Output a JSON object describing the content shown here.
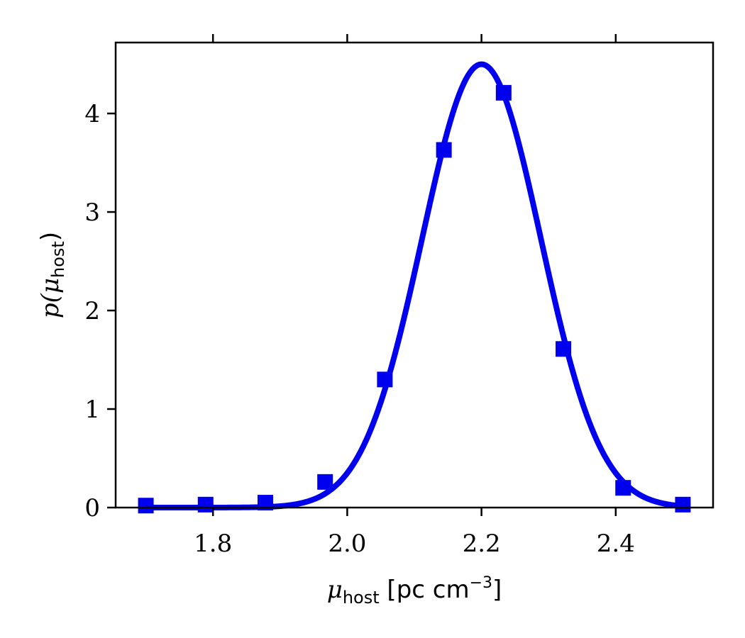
{
  "chart_data": {
    "type": "line",
    "title": "",
    "xlabel": {
      "symbol": "μ",
      "subscript": "host",
      "unit_open": " [pc cm",
      "unit_exponent": "−3",
      "unit_close": "]"
    },
    "ylabel": {
      "prefix": "p(",
      "symbol": "μ",
      "subscript": "host",
      "suffix": ")"
    },
    "xlim": [
      1.655,
      2.545
    ],
    "ylim": [
      0,
      4.72
    ],
    "xticks": [
      1.8,
      2.0,
      2.2,
      2.4
    ],
    "xtick_labels": [
      "1.8",
      "2.0",
      "2.2",
      "2.4"
    ],
    "yticks": [
      0,
      1,
      2,
      3,
      4
    ],
    "ytick_labels": [
      "0",
      "1",
      "2",
      "3",
      "4"
    ],
    "top_ticks": true,
    "grid": false,
    "legend": "none",
    "color": "#0000ee",
    "curve": {
      "type": "gaussian",
      "mean": 2.2,
      "sigma": 0.0885,
      "peak": 4.5
    },
    "series": [
      {
        "marker": "square",
        "x": [
          1.7,
          1.789,
          1.878,
          1.967,
          2.056,
          2.144,
          2.233,
          2.322,
          2.411,
          2.5
        ],
        "y": [
          0.02,
          0.03,
          0.05,
          0.26,
          1.3,
          3.63,
          4.21,
          1.61,
          0.2,
          0.03
        ]
      }
    ]
  }
}
